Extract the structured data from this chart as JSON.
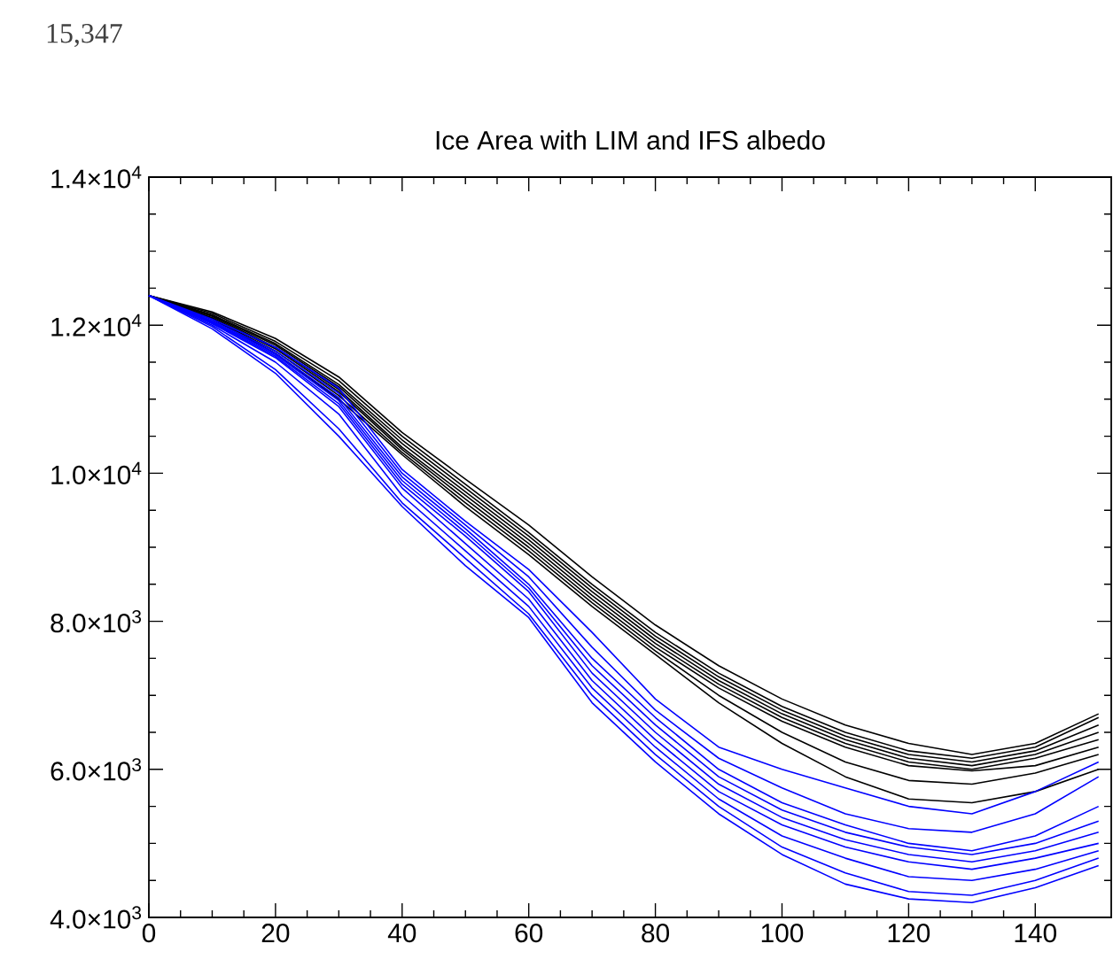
{
  "chart_data": {
    "type": "line",
    "title": "Ice Area with LIM and IFS albedo",
    "annotations": [
      "15,347"
    ],
    "x": [
      0,
      10,
      20,
      30,
      40,
      50,
      60,
      70,
      80,
      90,
      100,
      110,
      120,
      130,
      140,
      150
    ],
    "xlim": [
      0,
      152
    ],
    "xticks": [
      0,
      20,
      40,
      60,
      80,
      100,
      120,
      140
    ],
    "ylim": [
      4000,
      14000
    ],
    "yticks": [
      {
        "value": 4000,
        "label": "4.0×10$^{3}$"
      },
      {
        "value": 6000,
        "label": "6.0×10$^{3}$"
      },
      {
        "value": 8000,
        "label": "8.0×10$^{3}$"
      },
      {
        "value": 10000,
        "label": "1.0×10$^{4}$"
      },
      {
        "value": 12000,
        "label": "1.2×10$^{4}$"
      },
      {
        "value": 14000,
        "label": "1.4×10$^{4}$"
      }
    ],
    "grid": false,
    "series": [
      {
        "color": "#000000",
        "values": [
          12400,
          12180,
          11820,
          11300,
          10550,
          9920,
          9300,
          8600,
          7950,
          7400,
          6950,
          6600,
          6350,
          6200,
          6350,
          6750
        ]
      },
      {
        "color": "#000000",
        "values": [
          12400,
          12160,
          11780,
          11250,
          10500,
          9850,
          9200,
          8500,
          7850,
          7300,
          6850,
          6500,
          6250,
          6150,
          6300,
          6700
        ]
      },
      {
        "color": "#000000",
        "values": [
          12400,
          12140,
          11750,
          11200,
          10450,
          9800,
          9150,
          8450,
          7800,
          7250,
          6800,
          6450,
          6200,
          6100,
          6250,
          6600
        ]
      },
      {
        "color": "#000000",
        "values": [
          12400,
          12130,
          11730,
          11170,
          10400,
          9750,
          9100,
          8400,
          7750,
          7200,
          6750,
          6400,
          6150,
          6050,
          6200,
          6500
        ]
      },
      {
        "color": "#000000",
        "values": [
          12400,
          12120,
          11700,
          11130,
          10350,
          9700,
          9050,
          8350,
          7700,
          7150,
          6700,
          6350,
          6100,
          6000,
          6150,
          6400
        ]
      },
      {
        "color": "#000000",
        "values": [
          12400,
          12100,
          11680,
          11100,
          10320,
          9650,
          9000,
          8300,
          7650,
          7100,
          6650,
          6300,
          6050,
          5980,
          6050,
          6300
        ]
      },
      {
        "color": "#000000",
        "values": [
          12400,
          12090,
          11650,
          11050,
          10280,
          9600,
          8950,
          8250,
          7600,
          7000,
          6500,
          6100,
          5850,
          5800,
          5950,
          6200
        ]
      },
      {
        "color": "#000000",
        "values": [
          12400,
          12080,
          11620,
          11000,
          10250,
          9550,
          8900,
          8200,
          7550,
          6900,
          6350,
          5900,
          5600,
          5550,
          5700,
          6000
        ]
      },
      {
        "color": "#0000ff",
        "values": [
          12400,
          12080,
          11700,
          11150,
          10050,
          9350,
          8700,
          7850,
          6950,
          6300,
          6000,
          5750,
          5500,
          5400,
          5700,
          6100
        ]
      },
      {
        "color": "#0000ff",
        "values": [
          12400,
          12060,
          11650,
          11080,
          10000,
          9300,
          8600,
          7650,
          6800,
          6150,
          5750,
          5400,
          5200,
          5150,
          5400,
          5900
        ]
      },
      {
        "color": "#0000ff",
        "values": [
          12400,
          12050,
          11620,
          11020,
          9950,
          9250,
          8500,
          7500,
          6700,
          6000,
          5550,
          5250,
          5000,
          4900,
          5100,
          5500
        ]
      },
      {
        "color": "#0000ff",
        "values": [
          12400,
          12040,
          11600,
          10980,
          9900,
          9200,
          8450,
          7400,
          6600,
          5900,
          5450,
          5150,
          4950,
          4850,
          5000,
          5300
        ]
      },
      {
        "color": "#0000ff",
        "values": [
          12400,
          12030,
          11580,
          10940,
          9850,
          9150,
          8400,
          7300,
          6500,
          5800,
          5350,
          5050,
          4850,
          4750,
          4900,
          5150
        ]
      },
      {
        "color": "#0000ff",
        "values": [
          12400,
          12020,
          11560,
          10900,
          9800,
          9050,
          8300,
          7200,
          6400,
          5700,
          5250,
          4950,
          4750,
          4650,
          4800,
          5000
        ]
      },
      {
        "color": "#0000ff",
        "values": [
          12400,
          12000,
          11500,
          10800,
          9700,
          8950,
          8200,
          7100,
          6300,
          5600,
          5100,
          4800,
          4550,
          4500,
          4650,
          4900
        ]
      },
      {
        "color": "#0000ff",
        "values": [
          12400,
          11980,
          11400,
          10600,
          9600,
          8850,
          8100,
          7000,
          6200,
          5500,
          4950,
          4600,
          4350,
          4300,
          4500,
          4800
        ]
      },
      {
        "color": "#0000ff",
        "values": [
          12400,
          11950,
          11350,
          10500,
          9550,
          8750,
          8050,
          6900,
          6100,
          5400,
          4850,
          4450,
          4250,
          4200,
          4400,
          4700
        ]
      }
    ]
  }
}
